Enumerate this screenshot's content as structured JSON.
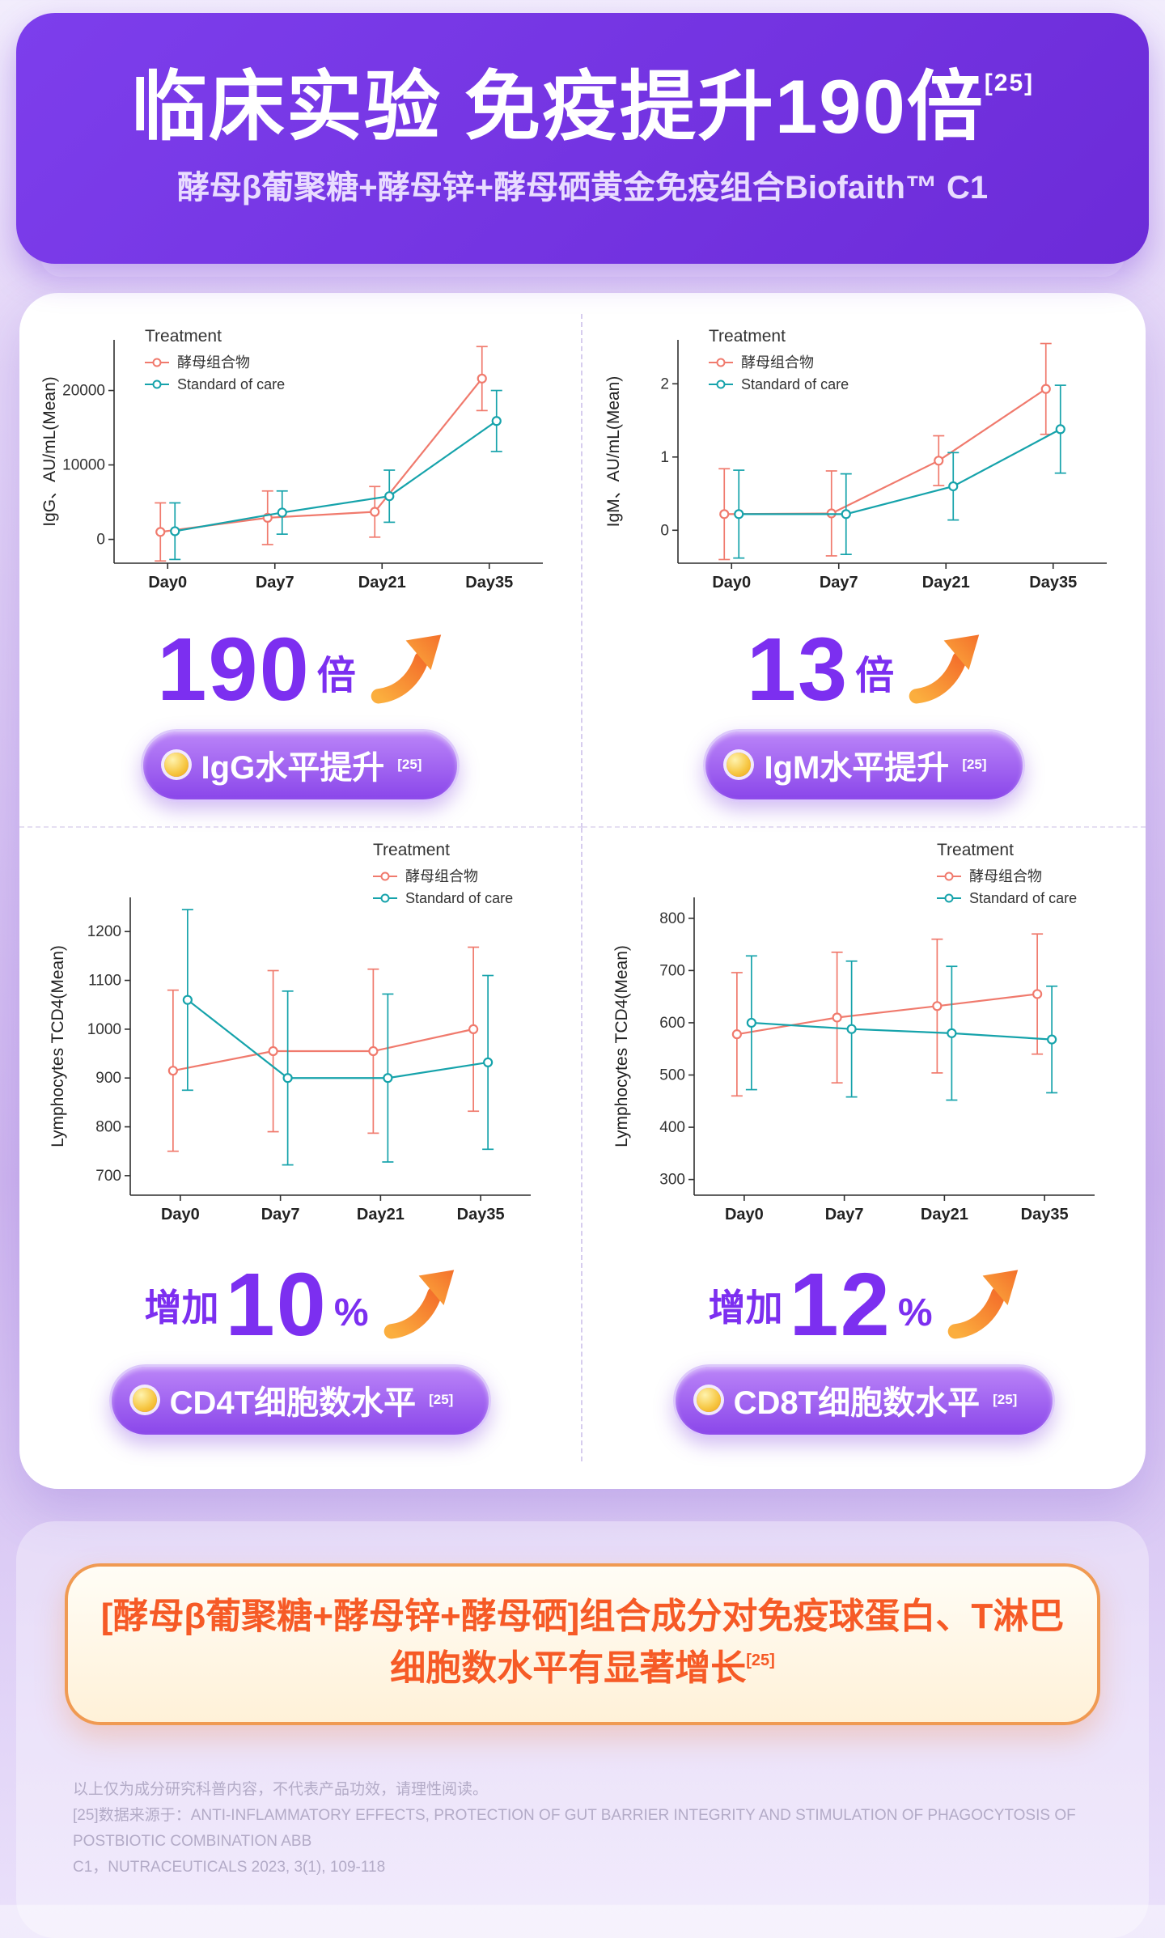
{
  "header": {
    "title": "临床实验 免疫提升190倍",
    "title_sup": "[25]",
    "subtitle": "酵母β葡聚糖+酵母锌+酵母硒黄金免疫组合Biofaith™ C1"
  },
  "panels": [
    {
      "stat_prefix": "",
      "stat_value": "190",
      "stat_unit": "倍",
      "badge": "IgG水平提升",
      "badge_sup": "[25]"
    },
    {
      "stat_prefix": "",
      "stat_value": "13",
      "stat_unit": "倍",
      "badge": "IgM水平提升",
      "badge_sup": "[25]"
    },
    {
      "stat_prefix": "增加",
      "stat_value": "10",
      "stat_unit": "%",
      "badge": "CD4T细胞数水平",
      "badge_sup": "[25]"
    },
    {
      "stat_prefix": "增加",
      "stat_value": "12",
      "stat_unit": "%",
      "badge": "CD8T细胞数水平",
      "badge_sup": "[25]"
    }
  ],
  "claim": {
    "line1": "[酵母β葡聚糖+酵母锌+酵母硒]组合成分对免疫球蛋白、T淋巴",
    "line2": "细胞数水平有显著增长",
    "line2_sup": "[25]"
  },
  "footnotes": {
    "line1": "以上仅为成分研究科普内容，不代表产品功效，请理性阅读。",
    "line2": "[25]数据来源于：ANTI-INFLAMMATORY EFFECTS, PROTECTION OF GUT BARRIER INTEGRITY AND STIMULATION OF PHAGOCYTOSIS OF POSTBIOTIC COMBINATION ABB",
    "line3": "C1，NUTRACEUTICALS 2023, 3(1), 109-118"
  },
  "colors": {
    "accent_purple": "#7c2ff0",
    "series_red": "#f07a6d",
    "series_teal": "#16a3ab",
    "claim_orange": "#f65a26"
  },
  "chart_data": [
    {
      "type": "line",
      "title": "Treatment",
      "ylabel": "IgG、AU/mL(Mean)",
      "categories": [
        "Day0",
        "Day7",
        "Day21",
        "Day35"
      ],
      "ylim": [
        -3200,
        26800
      ],
      "yticks": [
        0,
        10000,
        20000
      ],
      "legend": "top-left",
      "series": [
        {
          "name": "酵母组合物",
          "color": "#f07a6d",
          "values": [
            1000,
            2900,
            3700,
            21600
          ],
          "errors": [
            3900,
            3600,
            3400,
            4300
          ]
        },
        {
          "name": "Standard of care",
          "color": "#16a3ab",
          "values": [
            1100,
            3600,
            5800,
            15900
          ],
          "errors": [
            3800,
            2900,
            3500,
            4100
          ]
        }
      ]
    },
    {
      "type": "line",
      "title": "Treatment",
      "ylabel": "IgM、AU/mL(Mean)",
      "categories": [
        "Day0",
        "Day7",
        "Day21",
        "Day35"
      ],
      "ylim": [
        -0.45,
        2.6
      ],
      "yticks": [
        0,
        1,
        2
      ],
      "legend": "top-left",
      "series": [
        {
          "name": "酵母组合物",
          "color": "#f07a6d",
          "values": [
            0.22,
            0.23,
            0.95,
            1.93
          ],
          "errors": [
            0.62,
            0.58,
            0.34,
            0.62
          ]
        },
        {
          "name": "Standard of care",
          "color": "#16a3ab",
          "values": [
            0.22,
            0.22,
            0.6,
            1.38
          ],
          "errors": [
            0.6,
            0.55,
            0.46,
            0.6
          ]
        }
      ]
    },
    {
      "type": "line",
      "title": "Treatment",
      "ylabel": "Lymphocytes TCD4(Mean)",
      "categories": [
        "Day0",
        "Day7",
        "Day21",
        "Day35"
      ],
      "ylim": [
        660,
        1270
      ],
      "yticks": [
        700,
        800,
        900,
        1000,
        1100,
        1200
      ],
      "legend": "top-right",
      "series": [
        {
          "name": "酵母组合物",
          "color": "#f07a6d",
          "values": [
            915,
            955,
            955,
            1000
          ],
          "errors": [
            165,
            165,
            168,
            168
          ]
        },
        {
          "name": "Standard of care",
          "color": "#16a3ab",
          "values": [
            1060,
            900,
            900,
            932
          ],
          "errors": [
            185,
            178,
            172,
            178
          ]
        }
      ]
    },
    {
      "type": "line",
      "title": "Treatment",
      "ylabel": "Lymphocytes TCD4(Mean)",
      "categories": [
        "Day0",
        "Day7",
        "Day21",
        "Day35"
      ],
      "ylim": [
        270,
        840
      ],
      "yticks": [
        300,
        400,
        500,
        600,
        700,
        800
      ],
      "legend": "top-right",
      "series": [
        {
          "name": "酵母组合物",
          "color": "#f07a6d",
          "values": [
            578,
            610,
            632,
            655
          ],
          "errors": [
            118,
            125,
            128,
            115
          ]
        },
        {
          "name": "Standard of care",
          "color": "#16a3ab",
          "values": [
            600,
            588,
            580,
            568
          ],
          "errors": [
            128,
            130,
            128,
            102
          ]
        }
      ]
    }
  ]
}
